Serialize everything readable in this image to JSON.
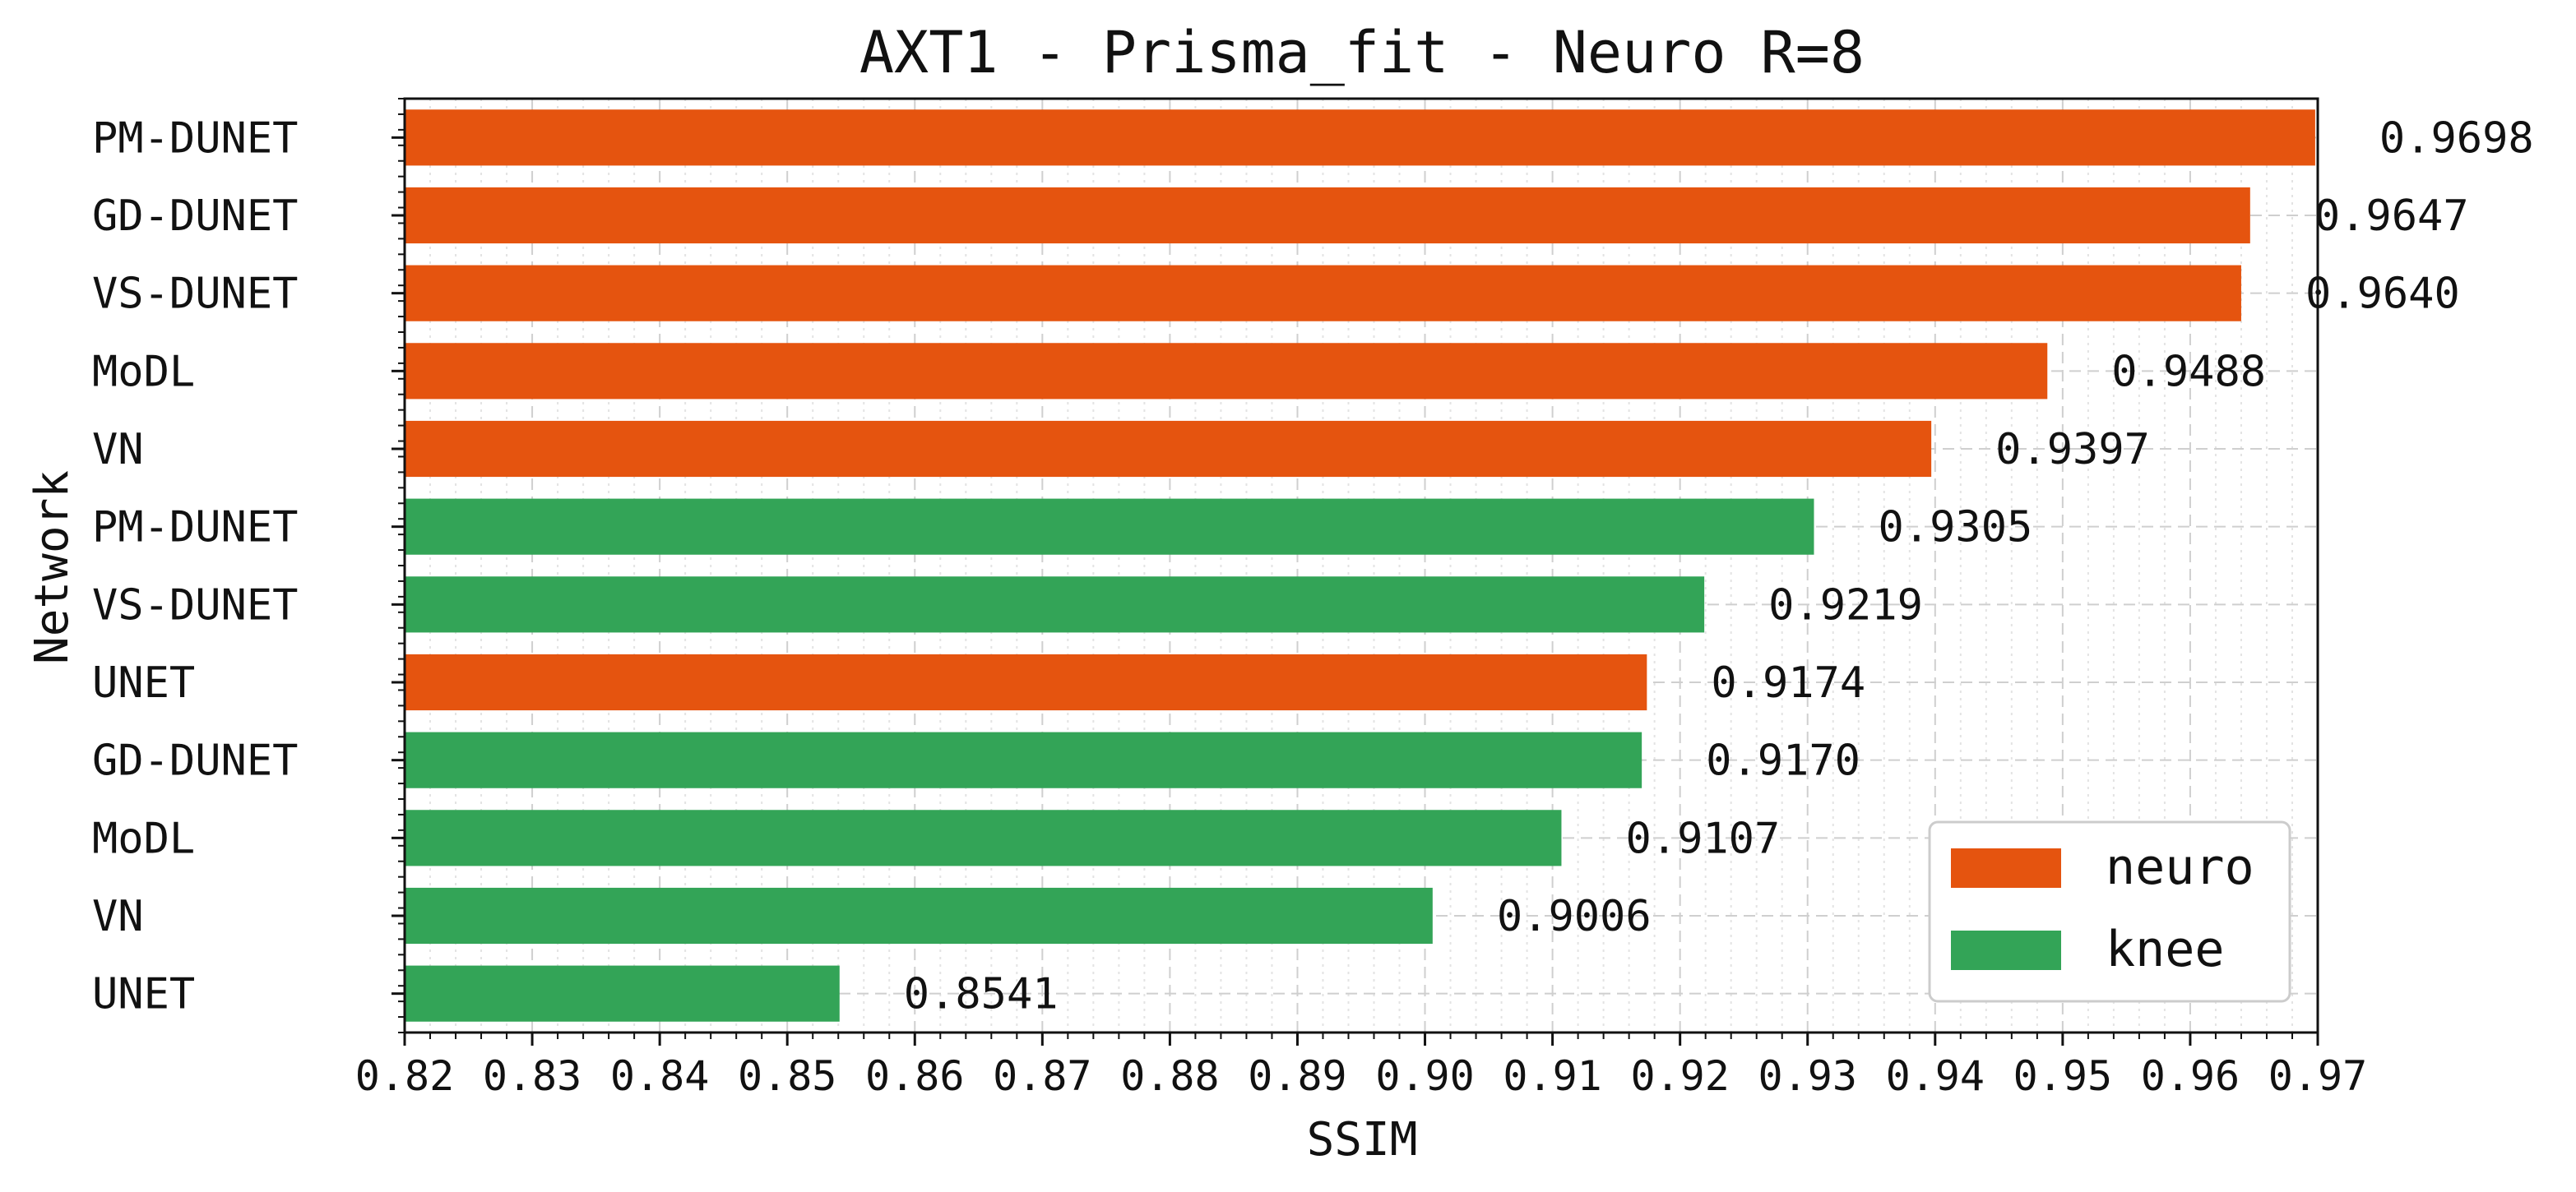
{
  "chart_data": {
    "type": "bar",
    "orientation": "horizontal",
    "title": "AXT1 - Prisma_fit - Neuro R=8",
    "xlabel": "SSIM",
    "ylabel": "Network",
    "xlim": [
      0.82,
      0.97
    ],
    "x_ticks": [
      "0.82",
      "0.83",
      "0.84",
      "0.85",
      "0.86",
      "0.87",
      "0.88",
      "0.89",
      "0.90",
      "0.91",
      "0.92",
      "0.93",
      "0.94",
      "0.95",
      "0.96",
      "0.97"
    ],
    "grid": true,
    "legend_position": "bottom-right",
    "series": [
      {
        "name": "neuro",
        "color": "#e5540f"
      },
      {
        "name": "knee",
        "color": "#33a457"
      }
    ],
    "bars": [
      {
        "category": "PM-DUNET",
        "value": 0.9698,
        "label": "0.9698",
        "series": "neuro"
      },
      {
        "category": "GD-DUNET",
        "value": 0.9647,
        "label": "0.9647",
        "series": "neuro"
      },
      {
        "category": "VS-DUNET",
        "value": 0.964,
        "label": "0.9640",
        "series": "neuro"
      },
      {
        "category": "MoDL",
        "value": 0.9488,
        "label": "0.9488",
        "series": "neuro"
      },
      {
        "category": "VN",
        "value": 0.9397,
        "label": "0.9397",
        "series": "neuro"
      },
      {
        "category": "PM-DUNET",
        "value": 0.9305,
        "label": "0.9305",
        "series": "knee"
      },
      {
        "category": "VS-DUNET",
        "value": 0.9219,
        "label": "0.9219",
        "series": "knee"
      },
      {
        "category": "UNET",
        "value": 0.9174,
        "label": "0.9174",
        "series": "neuro"
      },
      {
        "category": "GD-DUNET",
        "value": 0.917,
        "label": "0.9170",
        "series": "knee"
      },
      {
        "category": "MoDL",
        "value": 0.9107,
        "label": "0.9107",
        "series": "knee"
      },
      {
        "category": "VN",
        "value": 0.9006,
        "label": "0.9006",
        "series": "knee"
      },
      {
        "category": "UNET",
        "value": 0.8541,
        "label": "0.8541",
        "series": "knee"
      }
    ]
  }
}
